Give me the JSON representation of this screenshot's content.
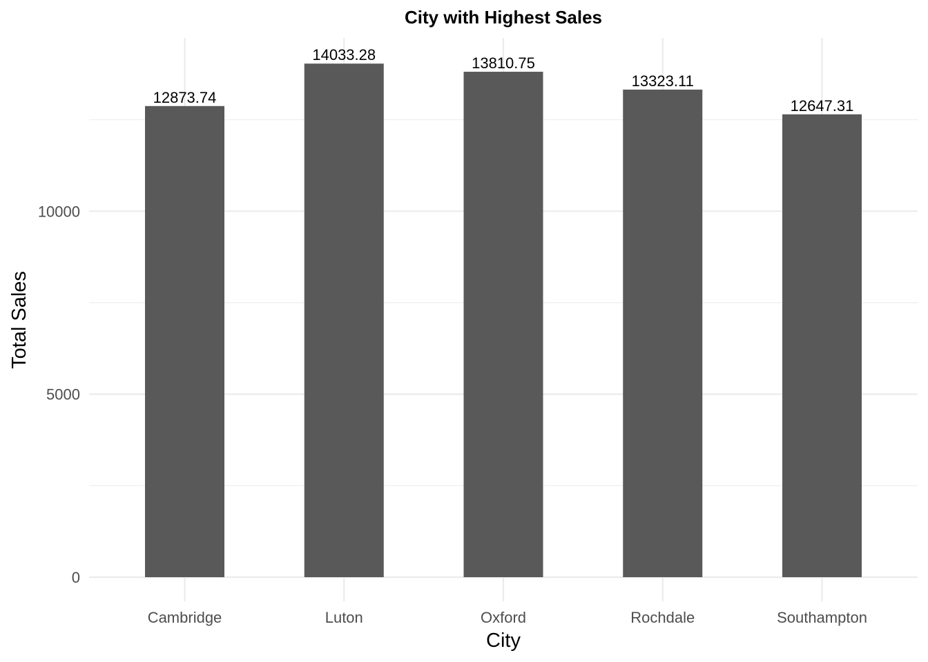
{
  "chart_data": {
    "type": "bar",
    "title": "City with Highest Sales",
    "xlabel": "City",
    "ylabel": "Total Sales",
    "categories": [
      "Cambridge",
      "Luton",
      "Oxford",
      "Rochdale",
      "Southampton"
    ],
    "values": [
      12873.74,
      14033.28,
      13810.75,
      13323.11,
      12647.31
    ],
    "data_labels": [
      "12873.74",
      "14033.28",
      "13810.75",
      "13323.11",
      "12647.31"
    ],
    "y_ticks": [
      0,
      5000,
      10000
    ],
    "y_tick_labels": [
      "0",
      "5000",
      "10000"
    ],
    "y_minor_ticks": [
      2500,
      7500,
      12500
    ],
    "ylim": [
      0,
      14735
    ],
    "grid": true,
    "legend": "none",
    "bar_color": "#595959",
    "grid_color": "#ebebeb"
  }
}
